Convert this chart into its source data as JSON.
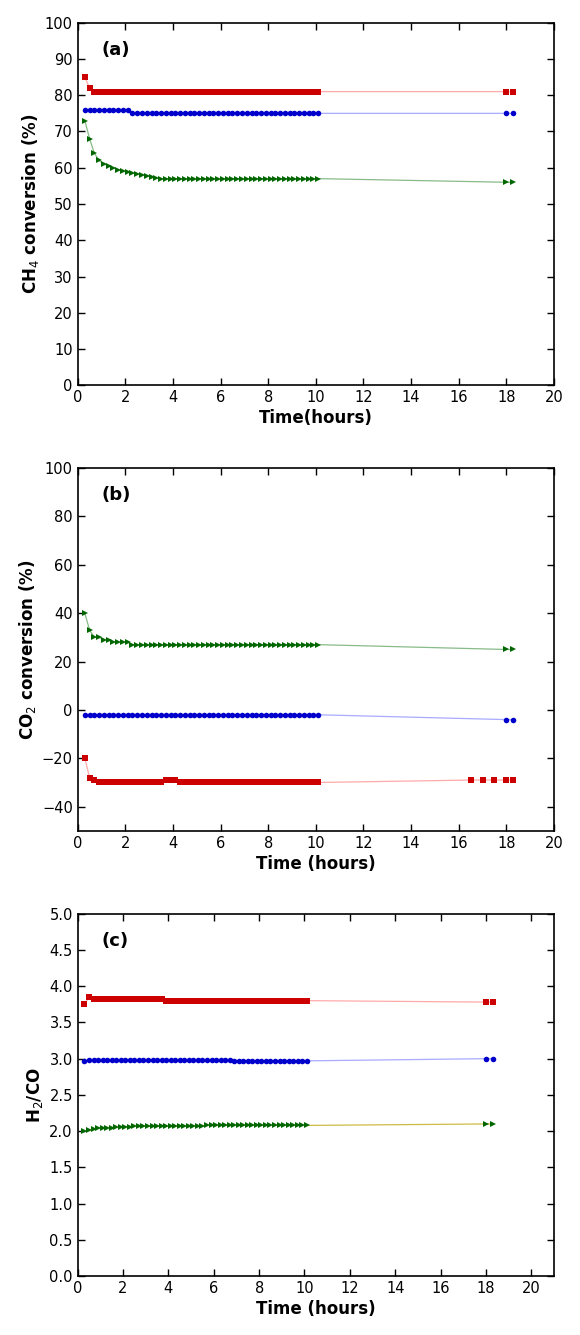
{
  "plot_a": {
    "ylabel": "CH$_4$ conversion (%)",
    "xlabel": "Time(hours)",
    "xlim": [
      0,
      20
    ],
    "ylim": [
      0,
      100
    ],
    "xticks": [
      0,
      2,
      4,
      6,
      8,
      10,
      12,
      14,
      16,
      18,
      20
    ],
    "yticks": [
      0,
      10,
      20,
      30,
      40,
      50,
      60,
      70,
      80,
      90,
      100
    ],
    "series": [
      {
        "color": "#CC0000",
        "line_color": "#FFAAAA",
        "marker": "s",
        "x": [
          0.3,
          0.5,
          0.7,
          0.9,
          1.1,
          1.3,
          1.5,
          1.7,
          1.9,
          2.1,
          2.3,
          2.5,
          2.7,
          2.9,
          3.1,
          3.3,
          3.5,
          3.7,
          3.9,
          4.1,
          4.3,
          4.5,
          4.7,
          4.9,
          5.1,
          5.3,
          5.5,
          5.7,
          5.9,
          6.1,
          6.3,
          6.5,
          6.7,
          6.9,
          7.1,
          7.3,
          7.5,
          7.7,
          7.9,
          8.1,
          8.3,
          8.5,
          8.7,
          8.9,
          9.1,
          9.3,
          9.5,
          9.7,
          9.9,
          10.1,
          18.0,
          18.3
        ],
        "y": [
          85,
          82,
          81,
          81,
          81,
          81,
          81,
          81,
          81,
          81,
          81,
          81,
          81,
          81,
          81,
          81,
          81,
          81,
          81,
          81,
          81,
          81,
          81,
          81,
          81,
          81,
          81,
          81,
          81,
          81,
          81,
          81,
          81,
          81,
          81,
          81,
          81,
          81,
          81,
          81,
          81,
          81,
          81,
          81,
          81,
          81,
          81,
          81,
          81,
          81,
          81,
          81
        ]
      },
      {
        "color": "#0000CC",
        "line_color": "#AAAAFF",
        "marker": "o",
        "x": [
          0.3,
          0.5,
          0.7,
          0.9,
          1.1,
          1.3,
          1.5,
          1.7,
          1.9,
          2.1,
          2.3,
          2.5,
          2.7,
          2.9,
          3.1,
          3.3,
          3.5,
          3.7,
          3.9,
          4.1,
          4.3,
          4.5,
          4.7,
          4.9,
          5.1,
          5.3,
          5.5,
          5.7,
          5.9,
          6.1,
          6.3,
          6.5,
          6.7,
          6.9,
          7.1,
          7.3,
          7.5,
          7.7,
          7.9,
          8.1,
          8.3,
          8.5,
          8.7,
          8.9,
          9.1,
          9.3,
          9.5,
          9.7,
          9.9,
          10.1,
          18.0,
          18.3
        ],
        "y": [
          76,
          76,
          76,
          76,
          76,
          76,
          76,
          76,
          76,
          76,
          75,
          75,
          75,
          75,
          75,
          75,
          75,
          75,
          75,
          75,
          75,
          75,
          75,
          75,
          75,
          75,
          75,
          75,
          75,
          75,
          75,
          75,
          75,
          75,
          75,
          75,
          75,
          75,
          75,
          75,
          75,
          75,
          75,
          75,
          75,
          75,
          75,
          75,
          75,
          75,
          75,
          75
        ]
      },
      {
        "color": "#006600",
        "line_color": "#88BB88",
        "marker": ">",
        "x": [
          0.3,
          0.5,
          0.7,
          0.9,
          1.1,
          1.3,
          1.5,
          1.7,
          1.9,
          2.1,
          2.3,
          2.5,
          2.7,
          2.9,
          3.1,
          3.3,
          3.5,
          3.7,
          3.9,
          4.1,
          4.3,
          4.5,
          4.7,
          4.9,
          5.1,
          5.3,
          5.5,
          5.7,
          5.9,
          6.1,
          6.3,
          6.5,
          6.7,
          6.9,
          7.1,
          7.3,
          7.5,
          7.7,
          7.9,
          8.1,
          8.3,
          8.5,
          8.7,
          8.9,
          9.1,
          9.3,
          9.5,
          9.7,
          9.9,
          10.1,
          18.0,
          18.3
        ],
        "y": [
          73,
          68,
          64,
          62,
          61,
          60.5,
          60,
          59.5,
          59,
          58.8,
          58.5,
          58.2,
          58,
          57.8,
          57.5,
          57.2,
          57,
          57,
          57,
          57,
          57,
          57,
          57,
          57,
          57,
          57,
          57,
          57,
          57,
          57,
          57,
          57,
          57,
          57,
          57,
          57,
          57,
          57,
          57,
          57,
          57,
          57,
          57,
          57,
          57,
          57,
          57,
          57,
          57,
          57,
          56,
          56
        ]
      }
    ]
  },
  "plot_b": {
    "ylabel": "CO$_2$ conversion (%)",
    "xlabel": "Time (hours)",
    "xlim": [
      0,
      20
    ],
    "ylim": [
      -50,
      100
    ],
    "xticks": [
      0,
      2,
      4,
      6,
      8,
      10,
      12,
      14,
      16,
      18,
      20
    ],
    "yticks": [
      -40,
      -20,
      0,
      20,
      40,
      60,
      80,
      100
    ],
    "series": [
      {
        "color": "#CC0000",
        "line_color": "#FFAAAA",
        "marker": "s",
        "x": [
          0.3,
          0.5,
          0.7,
          0.9,
          1.1,
          1.3,
          1.5,
          1.7,
          1.9,
          2.1,
          2.3,
          2.5,
          2.7,
          2.9,
          3.1,
          3.3,
          3.5,
          3.7,
          3.9,
          4.1,
          4.3,
          4.5,
          4.7,
          4.9,
          5.1,
          5.3,
          5.5,
          5.7,
          5.9,
          6.1,
          6.3,
          6.5,
          6.7,
          6.9,
          7.1,
          7.3,
          7.5,
          7.7,
          7.9,
          8.1,
          8.3,
          8.5,
          8.7,
          8.9,
          9.1,
          9.3,
          9.5,
          9.7,
          9.9,
          10.1,
          16.5,
          17.0,
          17.5,
          18.0,
          18.3
        ],
        "y": [
          -20,
          -28,
          -29,
          -30,
          -30,
          -30,
          -30,
          -30,
          -30,
          -30,
          -30,
          -30,
          -30,
          -30,
          -30,
          -30,
          -30,
          -29,
          -29,
          -29,
          -30,
          -30,
          -30,
          -30,
          -30,
          -30,
          -30,
          -30,
          -30,
          -30,
          -30,
          -30,
          -30,
          -30,
          -30,
          -30,
          -30,
          -30,
          -30,
          -30,
          -30,
          -30,
          -30,
          -30,
          -30,
          -30,
          -30,
          -30,
          -30,
          -30,
          -29,
          -29,
          -29,
          -29,
          -29
        ]
      },
      {
        "color": "#0000CC",
        "line_color": "#AAAAFF",
        "marker": "o",
        "x": [
          0.3,
          0.5,
          0.7,
          0.9,
          1.1,
          1.3,
          1.5,
          1.7,
          1.9,
          2.1,
          2.3,
          2.5,
          2.7,
          2.9,
          3.1,
          3.3,
          3.5,
          3.7,
          3.9,
          4.1,
          4.3,
          4.5,
          4.7,
          4.9,
          5.1,
          5.3,
          5.5,
          5.7,
          5.9,
          6.1,
          6.3,
          6.5,
          6.7,
          6.9,
          7.1,
          7.3,
          7.5,
          7.7,
          7.9,
          8.1,
          8.3,
          8.5,
          8.7,
          8.9,
          9.1,
          9.3,
          9.5,
          9.7,
          9.9,
          10.1,
          18.0,
          18.3
        ],
        "y": [
          -2,
          -2,
          -2,
          -2,
          -2,
          -2,
          -2,
          -2,
          -2,
          -2,
          -2,
          -2,
          -2,
          -2,
          -2,
          -2,
          -2,
          -2,
          -2,
          -2,
          -2,
          -2,
          -2,
          -2,
          -2,
          -2,
          -2,
          -2,
          -2,
          -2,
          -2,
          -2,
          -2,
          -2,
          -2,
          -2,
          -2,
          -2,
          -2,
          -2,
          -2,
          -2,
          -2,
          -2,
          -2,
          -2,
          -2,
          -2,
          -2,
          -2,
          -4,
          -4
        ]
      },
      {
        "color": "#006600",
        "line_color": "#88BB88",
        "marker": ">",
        "x": [
          0.3,
          0.5,
          0.7,
          0.9,
          1.1,
          1.3,
          1.5,
          1.7,
          1.9,
          2.1,
          2.3,
          2.5,
          2.7,
          2.9,
          3.1,
          3.3,
          3.5,
          3.7,
          3.9,
          4.1,
          4.3,
          4.5,
          4.7,
          4.9,
          5.1,
          5.3,
          5.5,
          5.7,
          5.9,
          6.1,
          6.3,
          6.5,
          6.7,
          6.9,
          7.1,
          7.3,
          7.5,
          7.7,
          7.9,
          8.1,
          8.3,
          8.5,
          8.7,
          8.9,
          9.1,
          9.3,
          9.5,
          9.7,
          9.9,
          10.1,
          18.0,
          18.3
        ],
        "y": [
          40,
          33,
          30,
          30,
          29,
          29,
          28,
          28,
          28,
          28,
          27,
          27,
          27,
          27,
          27,
          27,
          27,
          27,
          27,
          27,
          27,
          27,
          27,
          27,
          27,
          27,
          27,
          27,
          27,
          27,
          27,
          27,
          27,
          27,
          27,
          27,
          27,
          27,
          27,
          27,
          27,
          27,
          27,
          27,
          27,
          27,
          27,
          27,
          27,
          27,
          25,
          25
        ]
      }
    ]
  },
  "plot_c": {
    "ylabel": "H$_2$/CO",
    "xlabel": "Time (hours)",
    "xlim": [
      0,
      21
    ],
    "ylim": [
      0.0,
      5.0
    ],
    "xticks": [
      0,
      2,
      4,
      6,
      8,
      10,
      12,
      14,
      16,
      18,
      20
    ],
    "yticks": [
      0.0,
      0.5,
      1.0,
      1.5,
      2.0,
      2.5,
      3.0,
      3.5,
      4.0,
      4.5,
      5.0
    ],
    "series": [
      {
        "color": "#CC0000",
        "line_color": "#FFAAAA",
        "marker": "s",
        "x": [
          0.3,
          0.5,
          0.7,
          0.9,
          1.1,
          1.3,
          1.5,
          1.7,
          1.9,
          2.1,
          2.3,
          2.5,
          2.7,
          2.9,
          3.1,
          3.3,
          3.5,
          3.7,
          3.9,
          4.1,
          4.3,
          4.5,
          4.7,
          4.9,
          5.1,
          5.3,
          5.5,
          5.7,
          5.9,
          6.1,
          6.3,
          6.5,
          6.7,
          6.9,
          7.1,
          7.3,
          7.5,
          7.7,
          7.9,
          8.1,
          8.3,
          8.5,
          8.7,
          8.9,
          9.1,
          9.3,
          9.5,
          9.7,
          9.9,
          10.1,
          18.0,
          18.3
        ],
        "y": [
          3.75,
          3.85,
          3.82,
          3.82,
          3.82,
          3.82,
          3.82,
          3.82,
          3.82,
          3.82,
          3.82,
          3.82,
          3.82,
          3.82,
          3.82,
          3.82,
          3.82,
          3.82,
          3.8,
          3.8,
          3.8,
          3.8,
          3.8,
          3.8,
          3.8,
          3.8,
          3.8,
          3.8,
          3.8,
          3.8,
          3.8,
          3.8,
          3.8,
          3.8,
          3.8,
          3.8,
          3.8,
          3.8,
          3.8,
          3.8,
          3.8,
          3.8,
          3.8,
          3.8,
          3.8,
          3.8,
          3.8,
          3.8,
          3.8,
          3.8,
          3.78,
          3.78
        ]
      },
      {
        "color": "#0000CC",
        "line_color": "#AAAAFF",
        "marker": "o",
        "x": [
          0.3,
          0.5,
          0.7,
          0.9,
          1.1,
          1.3,
          1.5,
          1.7,
          1.9,
          2.1,
          2.3,
          2.5,
          2.7,
          2.9,
          3.1,
          3.3,
          3.5,
          3.7,
          3.9,
          4.1,
          4.3,
          4.5,
          4.7,
          4.9,
          5.1,
          5.3,
          5.5,
          5.7,
          5.9,
          6.1,
          6.3,
          6.5,
          6.7,
          6.9,
          7.1,
          7.3,
          7.5,
          7.7,
          7.9,
          8.1,
          8.3,
          8.5,
          8.7,
          8.9,
          9.1,
          9.3,
          9.5,
          9.7,
          9.9,
          10.1,
          18.0,
          18.3
        ],
        "y": [
          2.97,
          2.98,
          2.98,
          2.98,
          2.98,
          2.98,
          2.98,
          2.98,
          2.98,
          2.98,
          2.98,
          2.98,
          2.98,
          2.98,
          2.98,
          2.98,
          2.98,
          2.98,
          2.98,
          2.98,
          2.98,
          2.98,
          2.98,
          2.98,
          2.98,
          2.98,
          2.98,
          2.98,
          2.98,
          2.98,
          2.98,
          2.98,
          2.98,
          2.97,
          2.97,
          2.97,
          2.97,
          2.97,
          2.97,
          2.97,
          2.97,
          2.97,
          2.97,
          2.97,
          2.97,
          2.97,
          2.97,
          2.97,
          2.97,
          2.97,
          3.0,
          3.0
        ]
      },
      {
        "color": "#006600",
        "line_color": "#CCBB44",
        "marker": ">",
        "x": [
          0.3,
          0.5,
          0.7,
          0.9,
          1.1,
          1.3,
          1.5,
          1.7,
          1.9,
          2.1,
          2.3,
          2.5,
          2.7,
          2.9,
          3.1,
          3.3,
          3.5,
          3.7,
          3.9,
          4.1,
          4.3,
          4.5,
          4.7,
          4.9,
          5.1,
          5.3,
          5.5,
          5.7,
          5.9,
          6.1,
          6.3,
          6.5,
          6.7,
          6.9,
          7.1,
          7.3,
          7.5,
          7.7,
          7.9,
          8.1,
          8.3,
          8.5,
          8.7,
          8.9,
          9.1,
          9.3,
          9.5,
          9.7,
          9.9,
          10.1,
          18.0,
          18.3
        ],
        "y": [
          2.0,
          2.02,
          2.03,
          2.04,
          2.05,
          2.05,
          2.05,
          2.06,
          2.06,
          2.06,
          2.06,
          2.07,
          2.07,
          2.07,
          2.07,
          2.07,
          2.07,
          2.07,
          2.07,
          2.07,
          2.07,
          2.07,
          2.07,
          2.07,
          2.07,
          2.07,
          2.07,
          2.08,
          2.08,
          2.08,
          2.08,
          2.08,
          2.08,
          2.08,
          2.08,
          2.08,
          2.08,
          2.08,
          2.08,
          2.08,
          2.08,
          2.08,
          2.08,
          2.08,
          2.08,
          2.08,
          2.08,
          2.08,
          2.08,
          2.08,
          2.1,
          2.1
        ]
      }
    ]
  }
}
